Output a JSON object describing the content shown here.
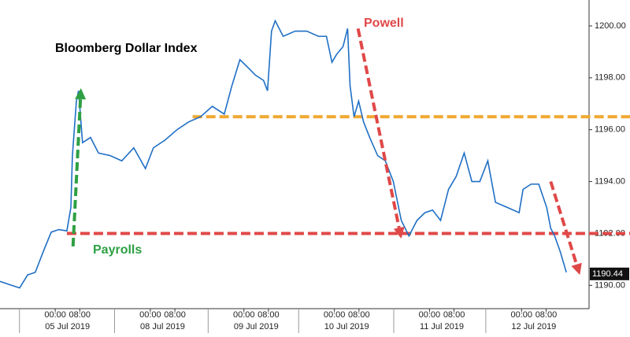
{
  "chart_data": {
    "type": "line",
    "title": "Bloomberg Dollar Index",
    "x": [
      0,
      3.8,
      6.4,
      9,
      11.5,
      14.1,
      16.7,
      19.2,
      21.8,
      23.1,
      23.6,
      24.9,
      25.6,
      26.9,
      29.5,
      32.1,
      35.9,
      39.7,
      43.6,
      47.4,
      50,
      53.8,
      57.7,
      61.5,
      65.4,
      69.2,
      73.1,
      75.6,
      78.2,
      80.8,
      83.3,
      85.9,
      87.2,
      88.5,
      89.7,
      92.3,
      96.2,
      100,
      103.8,
      106.4,
      108.2,
      109.7,
      111.8,
      113.3,
      114.1,
      115.4,
      116.9,
      118.5,
      120.5,
      123.1,
      125.6,
      128.2,
      130.8,
      133.3,
      135.9,
      138.5,
      141,
      143.6,
      146.2,
      148.7,
      151.3,
      153.8,
      156.4,
      159,
      161.5,
      165.4,
      169.2,
      170.5,
      173.1,
      175.6,
      178.2,
      179.5,
      180.8,
      182.6,
      184.6
    ],
    "series": [
      {
        "name": "Bloomberg Dollar Index",
        "color": "#1f6fc5",
        "values": [
          1190.15,
          1190.0,
          1189.9,
          1190.4,
          1190.5,
          1191.3,
          1192.05,
          1192.15,
          1192.1,
          1193.0,
          1195.0,
          1197.1,
          1197.5,
          1195.5,
          1195.7,
          1195.1,
          1195.0,
          1194.8,
          1195.3,
          1194.5,
          1195.3,
          1195.6,
          1196.0,
          1196.3,
          1196.5,
          1196.9,
          1196.6,
          1197.7,
          1198.7,
          1198.4,
          1198.1,
          1197.9,
          1197.5,
          1199.8,
          1200.2,
          1199.6,
          1199.8,
          1199.8,
          1199.6,
          1199.6,
          1198.6,
          1198.9,
          1199.2,
          1199.9,
          1197.7,
          1196.5,
          1197.1,
          1196.3,
          1195.7,
          1195.0,
          1194.8,
          1194.0,
          1192.5,
          1191.9,
          1192.5,
          1192.8,
          1192.9,
          1192.5,
          1193.7,
          1194.2,
          1195.1,
          1194.0,
          1194.0,
          1194.8,
          1193.2,
          1193.0,
          1192.8,
          1193.7,
          1193.9,
          1193.9,
          1193.0,
          1192.2,
          1191.9,
          1191.3,
          1190.5
        ]
      }
    ],
    "last_value": 1190.44,
    "xlim": [
      0,
      192
    ],
    "ylim": [
      1189.1,
      1201.0
    ],
    "yticks": [
      {
        "value": 1190,
        "label": "1190.00"
      },
      {
        "value": 1192,
        "label": "1192.00"
      },
      {
        "value": 1194,
        "label": "1194.00"
      },
      {
        "value": 1196,
        "label": "1196.00"
      },
      {
        "value": 1198,
        "label": "1198.00"
      },
      {
        "value": 1200,
        "label": "1200.00"
      }
    ],
    "xticks": [
      {
        "value": 18,
        "label": "00:00"
      },
      {
        "value": 26,
        "label": "08:00"
      },
      {
        "value": 49,
        "label": "00:00"
      },
      {
        "value": 57,
        "label": "08:00"
      },
      {
        "value": 79.5,
        "label": "00:00"
      },
      {
        "value": 87.5,
        "label": "08:00"
      },
      {
        "value": 109,
        "label": "00:00"
      },
      {
        "value": 117,
        "label": "08:00"
      },
      {
        "value": 140,
        "label": "00:00"
      },
      {
        "value": 148,
        "label": "08:00"
      },
      {
        "value": 170,
        "label": "00:00"
      },
      {
        "value": 178,
        "label": "08:00"
      }
    ],
    "date_labels": [
      {
        "value": 22,
        "label": "05 Jul 2019"
      },
      {
        "value": 53,
        "label": "08 Jul 2019"
      },
      {
        "value": 83.5,
        "label": "09 Jul 2019"
      },
      {
        "value": 113,
        "label": "10 Jul 2019"
      },
      {
        "value": 144,
        "label": "11 Jul 2019"
      },
      {
        "value": 174,
        "label": "12 Jul 2019"
      }
    ],
    "reference_lines": [
      {
        "y": 1196.5,
        "x0": 62.8,
        "color": "#f0a830"
      },
      {
        "y": 1192.0,
        "x0": 21.8,
        "color": "#e04848"
      }
    ],
    "arrows": [
      {
        "x": [
          23.8,
          26.4
        ],
        "y": [
          1191.5,
          1197.6
        ],
        "color": "#2ea043"
      },
      {
        "x": [
          116.7,
          130.8
        ],
        "y": [
          1199.9,
          1191.8
        ],
        "color": "#e04848"
      },
      {
        "x": [
          179.5,
          189
        ],
        "y": [
          1194.0,
          1190.4
        ],
        "color": "#e04848"
      }
    ],
    "annotations": [
      "Powell",
      "Payrolls"
    ]
  }
}
